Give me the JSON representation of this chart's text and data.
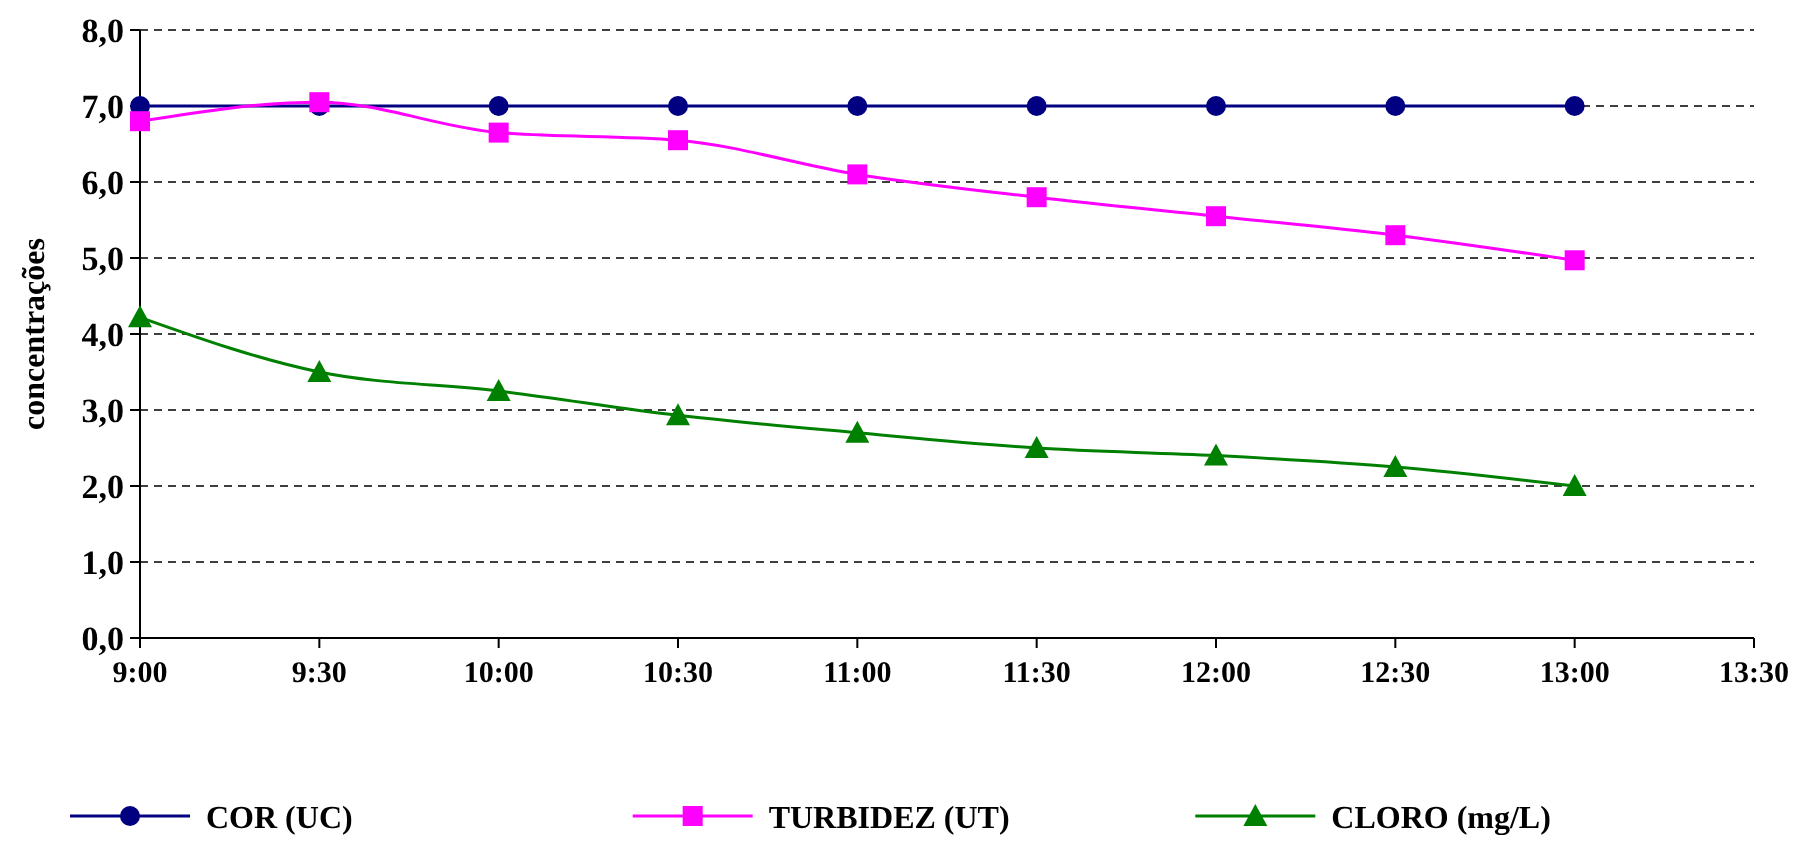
{
  "chart_data": {
    "type": "line",
    "ylabel": "concentrações",
    "x": [
      9,
      9.5,
      10,
      10.5,
      11,
      11.5,
      12,
      12.5,
      13
    ],
    "xlim": [
      9,
      13.5
    ],
    "xticks": [
      {
        "value": 9,
        "label": "9:00"
      },
      {
        "value": 9.5,
        "label": "9:30"
      },
      {
        "value": 10,
        "label": "10:00"
      },
      {
        "value": 10.5,
        "label": "10:30"
      },
      {
        "value": 11,
        "label": "11:00"
      },
      {
        "value": 11.5,
        "label": "11:30"
      },
      {
        "value": 12,
        "label": "12:00"
      },
      {
        "value": 12.5,
        "label": "12:30"
      },
      {
        "value": 13,
        "label": "13:00"
      },
      {
        "value": 13.5,
        "label": "13:30"
      }
    ],
    "ylim": [
      0,
      8
    ],
    "yticks": [
      {
        "value": 0,
        "label": "0,0"
      },
      {
        "value": 1,
        "label": "1,0"
      },
      {
        "value": 2,
        "label": "2,0"
      },
      {
        "value": 3,
        "label": "3,0"
      },
      {
        "value": 4,
        "label": "4,0"
      },
      {
        "value": 5,
        "label": "5,0"
      },
      {
        "value": 6,
        "label": "6,0"
      },
      {
        "value": 7,
        "label": "7,0"
      },
      {
        "value": 8,
        "label": "8,0"
      }
    ],
    "grid": "y",
    "legend": "bottom",
    "line_style": "solid",
    "series": [
      {
        "name": "COR (UC)",
        "color": "#000080",
        "marker": "circle",
        "values": [
          7,
          7,
          7,
          7,
          7,
          7,
          7,
          7,
          7
        ]
      },
      {
        "name": "TURBIDEZ (UT)",
        "color": "#ff00ff",
        "marker": "square",
        "values": [
          6.8,
          7.05,
          6.65,
          6.55,
          6.1,
          5.8,
          5.55,
          5.3,
          4.97
        ]
      },
      {
        "name": "CLORO (mg/L)",
        "color": "#008000",
        "marker": "triangle",
        "values": [
          4.22,
          3.5,
          3.25,
          2.93,
          2.7,
          2.5,
          2.4,
          2.25,
          2.0
        ]
      }
    ]
  }
}
